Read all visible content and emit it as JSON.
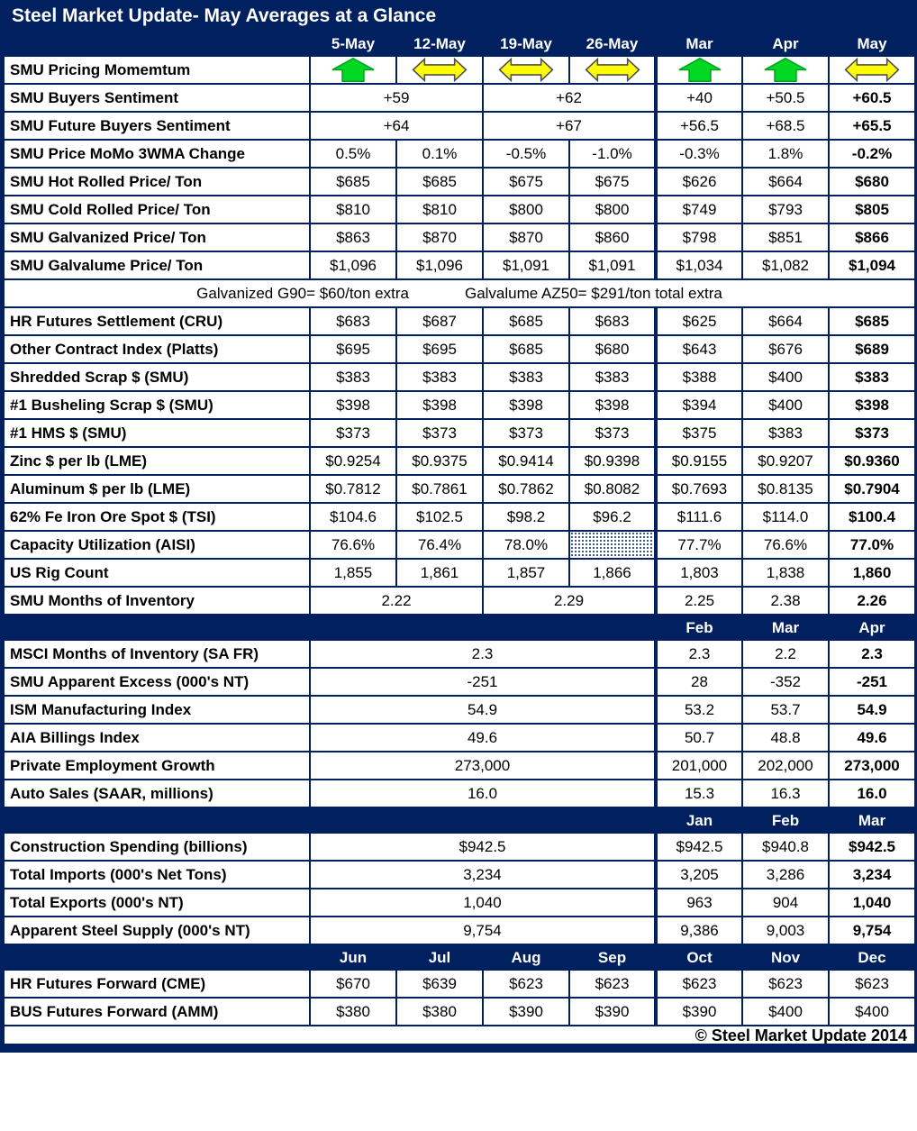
{
  "title": "Steel Market Update- May Averages at a Glance",
  "copyright": "© Steel Market Update 2014",
  "colors": {
    "navy": "#002060",
    "green_arrow": "#00d824",
    "green_arrow_edge": "#00a41e",
    "yellow_arrow": "#ffff00",
    "yellow_arrow_edge": "#4d4d4d"
  },
  "icons": {
    "up": "up-trend-arrow-icon",
    "side": "sideways-trend-arrow-icon"
  },
  "chart_data": {
    "type": "table",
    "title": "Steel Market Update- May Averages at a Glance",
    "rows": [
      {
        "type": "colheader",
        "cells": [
          {
            "text": "",
            "span": 1
          },
          {
            "text": "5-May"
          },
          {
            "text": "12-May"
          },
          {
            "text": "19-May"
          },
          {
            "text": "26-May"
          },
          {
            "text": "Mar"
          },
          {
            "text": "Apr"
          },
          {
            "text": "May"
          }
        ]
      },
      {
        "type": "data",
        "label": "SMU Pricing Momemtum",
        "cells": [
          {
            "icon": "up"
          },
          {
            "icon": "side"
          },
          {
            "icon": "side"
          },
          {
            "icon": "side"
          },
          {
            "icon": "up"
          },
          {
            "icon": "up"
          },
          {
            "icon": "side"
          }
        ]
      },
      {
        "type": "data",
        "label": "SMU Buyers Sentiment",
        "cells": [
          {
            "text": "+59",
            "span": 2
          },
          {
            "text": "+62",
            "span": 2
          },
          {
            "text": "+40"
          },
          {
            "text": "+50.5"
          },
          {
            "text": "+60.5",
            "bold": true
          }
        ]
      },
      {
        "type": "data",
        "label": "SMU Future Buyers Sentiment",
        "cells": [
          {
            "text": "+64",
            "span": 2
          },
          {
            "text": "+67",
            "span": 2
          },
          {
            "text": "+56.5"
          },
          {
            "text": "+68.5"
          },
          {
            "text": "+65.5",
            "bold": true
          }
        ]
      },
      {
        "type": "data",
        "label": "SMU Price MoMo 3WMA Change",
        "cells": [
          {
            "text": "0.5%"
          },
          {
            "text": "0.1%"
          },
          {
            "text": "-0.5%"
          },
          {
            "text": "-1.0%"
          },
          {
            "text": "-0.3%"
          },
          {
            "text": "1.8%"
          },
          {
            "text": "-0.2%",
            "bold": true
          }
        ]
      },
      {
        "type": "data",
        "label": "SMU Hot Rolled Price/ Ton",
        "cells": [
          {
            "text": "$685"
          },
          {
            "text": "$685"
          },
          {
            "text": "$675"
          },
          {
            "text": "$675"
          },
          {
            "text": "$626"
          },
          {
            "text": "$664"
          },
          {
            "text": "$680",
            "bold": true
          }
        ]
      },
      {
        "type": "data",
        "label": "SMU Cold Rolled Price/ Ton",
        "cells": [
          {
            "text": "$810"
          },
          {
            "text": "$810"
          },
          {
            "text": "$800"
          },
          {
            "text": "$800"
          },
          {
            "text": "$749"
          },
          {
            "text": "$793"
          },
          {
            "text": "$805",
            "bold": true
          }
        ]
      },
      {
        "type": "data",
        "label": "SMU Galvanized Price/ Ton",
        "cells": [
          {
            "text": "$863"
          },
          {
            "text": "$870"
          },
          {
            "text": "$870"
          },
          {
            "text": "$860"
          },
          {
            "text": "$798"
          },
          {
            "text": "$851"
          },
          {
            "text": "$866",
            "bold": true
          }
        ]
      },
      {
        "type": "data",
        "label": "SMU Galvalume Price/ Ton",
        "cells": [
          {
            "text": "$1,096"
          },
          {
            "text": "$1,096"
          },
          {
            "text": "$1,091"
          },
          {
            "text": "$1,091"
          },
          {
            "text": "$1,034"
          },
          {
            "text": "$1,082"
          },
          {
            "text": "$1,094",
            "bold": true
          }
        ]
      },
      {
        "type": "note",
        "left": "Galvanized G90= $60/ton extra",
        "right": "Galvalume AZ50= $291/ton total extra"
      },
      {
        "type": "data",
        "label": "HR Futures Settlement (CRU)",
        "cells": [
          {
            "text": "$683"
          },
          {
            "text": "$687"
          },
          {
            "text": "$685"
          },
          {
            "text": "$683"
          },
          {
            "text": "$625"
          },
          {
            "text": "$664"
          },
          {
            "text": "$685",
            "bold": true
          }
        ]
      },
      {
        "type": "data",
        "label": "Other Contract Index (Platts)",
        "cells": [
          {
            "text": "$695"
          },
          {
            "text": "$695"
          },
          {
            "text": "$685"
          },
          {
            "text": "$680"
          },
          {
            "text": "$643"
          },
          {
            "text": "$676"
          },
          {
            "text": "$689",
            "bold": true
          }
        ]
      },
      {
        "type": "data",
        "label": "Shredded Scrap $ (SMU)",
        "cells": [
          {
            "text": "$383"
          },
          {
            "text": "$383"
          },
          {
            "text": "$383"
          },
          {
            "text": "$383"
          },
          {
            "text": "$388"
          },
          {
            "text": "$400"
          },
          {
            "text": "$383",
            "bold": true
          }
        ]
      },
      {
        "type": "data",
        "label": "#1 Busheling Scrap $ (SMU)",
        "cells": [
          {
            "text": "$398"
          },
          {
            "text": "$398"
          },
          {
            "text": "$398"
          },
          {
            "text": "$398"
          },
          {
            "text": "$394"
          },
          {
            "text": "$400"
          },
          {
            "text": "$398",
            "bold": true
          }
        ]
      },
      {
        "type": "data",
        "label": "#1 HMS $ (SMU)",
        "cells": [
          {
            "text": "$373"
          },
          {
            "text": "$373"
          },
          {
            "text": "$373"
          },
          {
            "text": "$373"
          },
          {
            "text": "$375"
          },
          {
            "text": "$383"
          },
          {
            "text": "$373",
            "bold": true
          }
        ]
      },
      {
        "type": "data",
        "label": "Zinc $ per lb (LME)",
        "cells": [
          {
            "text": "$0.9254"
          },
          {
            "text": "$0.9375"
          },
          {
            "text": "$0.9414"
          },
          {
            "text": "$0.9398"
          },
          {
            "text": "$0.9155"
          },
          {
            "text": "$0.9207"
          },
          {
            "text": "$0.9360",
            "bold": true
          }
        ]
      },
      {
        "type": "data",
        "label": "Aluminum $ per lb (LME)",
        "cells": [
          {
            "text": "$0.7812"
          },
          {
            "text": "$0.7861"
          },
          {
            "text": "$0.7862"
          },
          {
            "text": "$0.8082"
          },
          {
            "text": "$0.7693"
          },
          {
            "text": "$0.8135"
          },
          {
            "text": "$0.7904",
            "bold": true
          }
        ]
      },
      {
        "type": "data",
        "label": "62% Fe Iron Ore Spot $ (TSI)",
        "cells": [
          {
            "text": "$104.6"
          },
          {
            "text": "$102.5"
          },
          {
            "text": "$98.2"
          },
          {
            "text": "$96.2"
          },
          {
            "text": "$111.6"
          },
          {
            "text": "$114.0"
          },
          {
            "text": "$100.4",
            "bold": true
          }
        ]
      },
      {
        "type": "data",
        "label": "Capacity Utilization (AISI)",
        "cells": [
          {
            "text": "76.6%"
          },
          {
            "text": "76.4%"
          },
          {
            "text": "78.0%"
          },
          {
            "text": "",
            "hatch": true
          },
          {
            "text": "77.7%"
          },
          {
            "text": "76.6%"
          },
          {
            "text": "77.0%",
            "bold": true
          }
        ]
      },
      {
        "type": "data",
        "label": "US Rig Count",
        "cells": [
          {
            "text": "1,855"
          },
          {
            "text": "1,861"
          },
          {
            "text": "1,857"
          },
          {
            "text": "1,866"
          },
          {
            "text": "1,803"
          },
          {
            "text": "1,838"
          },
          {
            "text": "1,860",
            "bold": true
          }
        ]
      },
      {
        "type": "data",
        "label": "SMU Months of Inventory",
        "cells": [
          {
            "text": "2.22",
            "span": 2
          },
          {
            "text": "2.29",
            "span": 2
          },
          {
            "text": "2.25"
          },
          {
            "text": "2.38"
          },
          {
            "text": "2.26",
            "bold": true
          }
        ]
      },
      {
        "type": "colheader",
        "cells": [
          {
            "text": "",
            "span": 5
          },
          {
            "text": "Feb"
          },
          {
            "text": "Mar"
          },
          {
            "text": "Apr"
          }
        ]
      },
      {
        "type": "data",
        "label": "MSCI Months of Inventory (SA FR)",
        "cells": [
          {
            "text": "2.3",
            "span": 4
          },
          {
            "text": "2.3"
          },
          {
            "text": "2.2"
          },
          {
            "text": "2.3",
            "bold": true
          }
        ]
      },
      {
        "type": "data",
        "label": "SMU Apparent Excess (000's NT)",
        "cells": [
          {
            "text": "-251",
            "span": 4
          },
          {
            "text": "28"
          },
          {
            "text": "-352"
          },
          {
            "text": "-251",
            "bold": true
          }
        ]
      },
      {
        "type": "data",
        "label": "ISM Manufacturing Index",
        "cells": [
          {
            "text": "54.9",
            "span": 4
          },
          {
            "text": "53.2"
          },
          {
            "text": "53.7"
          },
          {
            "text": "54.9",
            "bold": true
          }
        ]
      },
      {
        "type": "data",
        "label": "AIA Billings Index",
        "cells": [
          {
            "text": "49.6",
            "span": 4
          },
          {
            "text": "50.7"
          },
          {
            "text": "48.8"
          },
          {
            "text": "49.6",
            "bold": true
          }
        ]
      },
      {
        "type": "data",
        "label": "Private Employment Growth",
        "cells": [
          {
            "text": "273,000",
            "span": 4
          },
          {
            "text": "201,000"
          },
          {
            "text": "202,000"
          },
          {
            "text": "273,000",
            "bold": true
          }
        ]
      },
      {
        "type": "data",
        "label": "Auto Sales (SAAR, millions)",
        "cells": [
          {
            "text": "16.0",
            "span": 4
          },
          {
            "text": "15.3"
          },
          {
            "text": "16.3"
          },
          {
            "text": "16.0",
            "bold": true
          }
        ]
      },
      {
        "type": "colheader",
        "cells": [
          {
            "text": "",
            "span": 5
          },
          {
            "text": "Jan"
          },
          {
            "text": "Feb"
          },
          {
            "text": "Mar"
          }
        ]
      },
      {
        "type": "data",
        "label": "Construction Spending (billions)",
        "cells": [
          {
            "text": "$942.5",
            "span": 4
          },
          {
            "text": "$942.5"
          },
          {
            "text": "$940.8"
          },
          {
            "text": "$942.5",
            "bold": true
          }
        ]
      },
      {
        "type": "data",
        "label": "Total Imports (000's Net Tons)",
        "cells": [
          {
            "text": "3,234",
            "span": 4
          },
          {
            "text": "3,205"
          },
          {
            "text": "3,286"
          },
          {
            "text": "3,234",
            "bold": true
          }
        ]
      },
      {
        "type": "data",
        "label": "Total Exports (000's NT)",
        "cells": [
          {
            "text": "1,040",
            "span": 4
          },
          {
            "text": "963"
          },
          {
            "text": "904"
          },
          {
            "text": "1,040",
            "bold": true
          }
        ]
      },
      {
        "type": "data",
        "label": "Apparent Steel Supply (000's NT)",
        "cells": [
          {
            "text": "9,754",
            "span": 4
          },
          {
            "text": "9,386"
          },
          {
            "text": "9,003"
          },
          {
            "text": "9,754",
            "bold": true
          }
        ]
      },
      {
        "type": "colheader",
        "cells": [
          {
            "text": "",
            "span": 1
          },
          {
            "text": "Jun"
          },
          {
            "text": "Jul"
          },
          {
            "text": "Aug"
          },
          {
            "text": "Sep"
          },
          {
            "text": "Oct"
          },
          {
            "text": "Nov"
          },
          {
            "text": "Dec"
          }
        ]
      },
      {
        "type": "data",
        "label": "HR Futures Forward (CME)",
        "cells": [
          {
            "text": "$670"
          },
          {
            "text": "$639"
          },
          {
            "text": "$623"
          },
          {
            "text": "$623"
          },
          {
            "text": "$623"
          },
          {
            "text": "$623"
          },
          {
            "text": "$623"
          }
        ]
      },
      {
        "type": "data",
        "label": "BUS Futures Forward (AMM)",
        "cells": [
          {
            "text": "$380"
          },
          {
            "text": "$380"
          },
          {
            "text": "$390"
          },
          {
            "text": "$390"
          },
          {
            "text": "$390"
          },
          {
            "text": "$400"
          },
          {
            "text": "$400"
          }
        ]
      },
      {
        "type": "footer"
      }
    ]
  }
}
